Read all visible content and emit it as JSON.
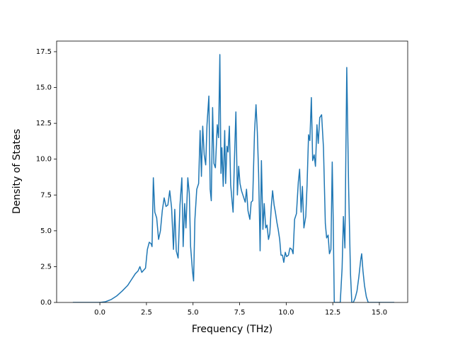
{
  "chart_data": {
    "type": "line",
    "xlabel": "Frequency (THz)",
    "ylabel": "Density of States",
    "xlim": [
      -2.32,
      16.52
    ],
    "ylim": [
      0,
      18.24
    ],
    "xticks": [
      {
        "value": 0,
        "label": "0.0"
      },
      {
        "value": 2.5,
        "label": "2.5"
      },
      {
        "value": 5,
        "label": "5.0"
      },
      {
        "value": 7.5,
        "label": "7.5"
      },
      {
        "value": 10,
        "label": "10.0"
      },
      {
        "value": 12.5,
        "label": "12.5"
      },
      {
        "value": 15,
        "label": "15.0"
      }
    ],
    "yticks": [
      {
        "value": 0,
        "label": "0.0"
      },
      {
        "value": 2.5,
        "label": "2.5"
      },
      {
        "value": 5,
        "label": "5.0"
      },
      {
        "value": 7.5,
        "label": "7.5"
      },
      {
        "value": 10,
        "label": "10.0"
      },
      {
        "value": 12.5,
        "label": "12.5"
      },
      {
        "value": 15,
        "label": "15.0"
      },
      {
        "value": 17.5,
        "label": "17.5"
      }
    ],
    "grid": false,
    "color": "#1f77b4",
    "x": [
      -1.45,
      0,
      0.3,
      0.6,
      0.9,
      1.2,
      1.5,
      1.7,
      1.9,
      2.05,
      2.15,
      2.25,
      2.45,
      2.55,
      2.65,
      2.75,
      2.8,
      2.87,
      2.95,
      3.05,
      3.15,
      3.25,
      3.35,
      3.45,
      3.55,
      3.65,
      3.75,
      3.85,
      3.95,
      4.02,
      4.1,
      4.2,
      4.3,
      4.4,
      4.47,
      4.55,
      4.62,
      4.72,
      4.8,
      4.87,
      4.97,
      5.03,
      5.1,
      5.2,
      5.3,
      5.38,
      5.45,
      5.52,
      5.6,
      5.68,
      5.75,
      5.85,
      5.92,
      5.98,
      6.05,
      6.12,
      6.2,
      6.3,
      6.37,
      6.44,
      6.5,
      6.55,
      6.62,
      6.7,
      6.75,
      6.82,
      6.88,
      6.95,
      7.02,
      7.1,
      7.15,
      7.22,
      7.3,
      7.38,
      7.45,
      7.52,
      7.6,
      7.7,
      7.8,
      7.87,
      7.95,
      8.05,
      8.12,
      8.2,
      8.3,
      8.38,
      8.45,
      8.52,
      8.6,
      8.67,
      8.75,
      8.82,
      8.9,
      8.97,
      9.05,
      9.12,
      9.2,
      9.27,
      9.35,
      9.42,
      9.5,
      9.57,
      9.65,
      9.72,
      9.8,
      9.87,
      9.95,
      10.02,
      10.12,
      10.2,
      10.3,
      10.37,
      10.45,
      10.55,
      10.65,
      10.72,
      10.8,
      10.87,
      10.95,
      11.05,
      11.12,
      11.2,
      11.27,
      11.35,
      11.42,
      11.5,
      11.57,
      11.65,
      11.72,
      11.8,
      11.9,
      12.0,
      12.1,
      12.17,
      12.25,
      12.32,
      12.4,
      12.47,
      12.52,
      12.58,
      12.9,
      13.0,
      13.07,
      13.15,
      13.25,
      13.35,
      13.45,
      13.52,
      13.6,
      13.7,
      13.8,
      13.9,
      14.0,
      14.05,
      14.12,
      14.2,
      14.3,
      14.4,
      15.8
    ],
    "values": [
      0,
      0,
      0.05,
      0.2,
      0.45,
      0.8,
      1.2,
      1.6,
      2.0,
      2.2,
      2.5,
      2.1,
      2.4,
      3.7,
      4.2,
      4.1,
      3.9,
      8.7,
      6.3,
      5.9,
      4.4,
      5.0,
      6.4,
      7.3,
      6.7,
      6.8,
      7.8,
      6.6,
      3.7,
      6.5,
      3.6,
      3.1,
      6.8,
      8.7,
      3.9,
      6.9,
      5.2,
      8.7,
      7.6,
      3.9,
      2.2,
      1.5,
      5.8,
      7.9,
      8.3,
      12.0,
      8.8,
      12.3,
      10.3,
      9.6,
      12.4,
      14.4,
      7.9,
      7.1,
      13.6,
      9.7,
      9.4,
      12.4,
      11.5,
      17.3,
      9.0,
      10.8,
      8.1,
      12.0,
      8.3,
      10.9,
      10.5,
      12.3,
      8.2,
      7.0,
      6.3,
      9.9,
      13.3,
      7.5,
      9.5,
      8.3,
      7.8,
      7.4,
      7.0,
      7.9,
      6.4,
      5.8,
      7.0,
      7.1,
      11.9,
      13.8,
      11.9,
      9.0,
      3.6,
      9.9,
      5.1,
      6.9,
      5.2,
      5.4,
      4.4,
      4.8,
      6.7,
      7.8,
      6.8,
      6.3,
      5.6,
      5.1,
      4.4,
      3.3,
      3.3,
      2.8,
      3.5,
      3.2,
      3.3,
      3.8,
      3.7,
      3.4,
      5.8,
      6.2,
      8.4,
      9.3,
      6.3,
      8.1,
      5.2,
      6.0,
      8.2,
      11.7,
      11.3,
      14.3,
      9.9,
      10.3,
      9.5,
      12.4,
      11.1,
      12.9,
      13.1,
      10.8,
      5.5,
      4.5,
      4.7,
      3.4,
      3.7,
      9.8,
      6.0,
      0,
      0,
      2.4,
      6.0,
      3.8,
      16.4,
      8.0,
      2.0,
      0,
      0,
      0.3,
      0.8,
      1.8,
      3.0,
      3.4,
      2.2,
      1.2,
      0.4,
      0,
      0
    ]
  }
}
